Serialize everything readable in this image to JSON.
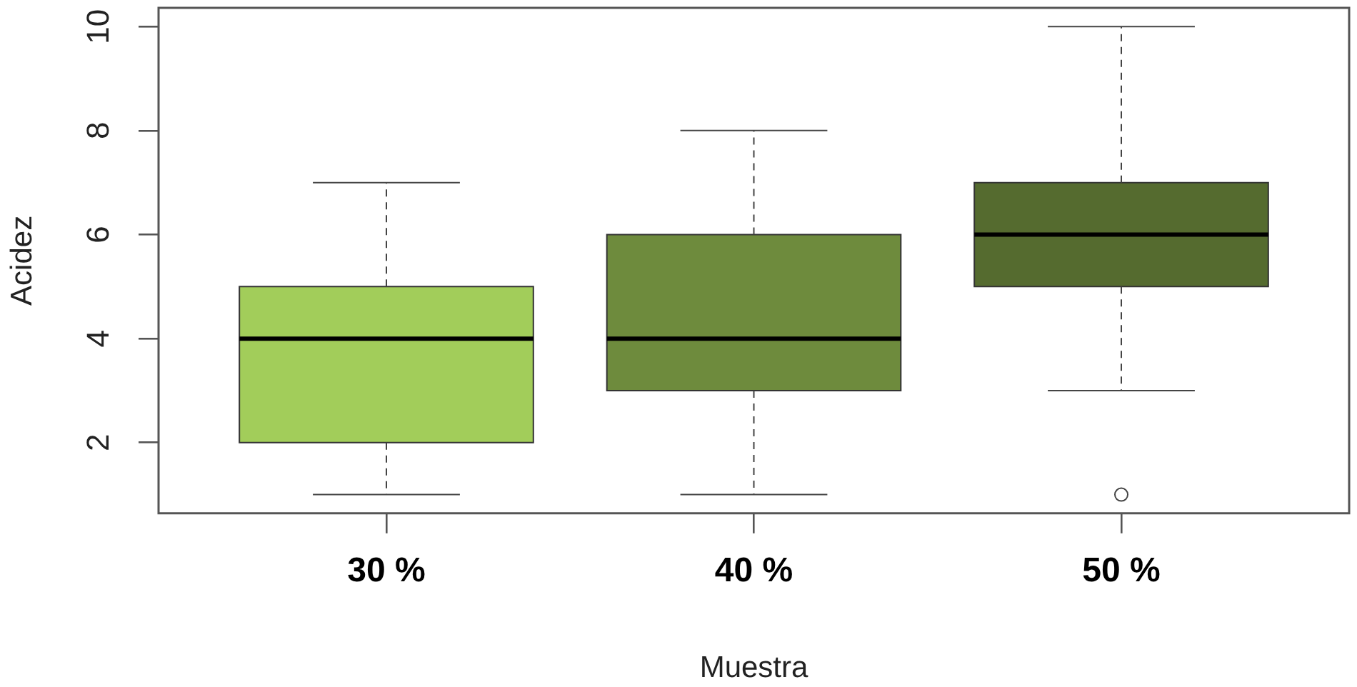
{
  "chart_data": {
    "type": "box",
    "categories": [
      "30 %",
      "40 %",
      "50 %"
    ],
    "boxes": [
      {
        "low": 1,
        "q1": 2,
        "median": 4,
        "q3": 5,
        "high": 7
      },
      {
        "low": 1,
        "q1": 3,
        "median": 4,
        "q3": 6,
        "high": 8
      },
      {
        "low": 3,
        "q1": 5,
        "median": 6,
        "q3": 7,
        "high": 10,
        "outliers": [
          1
        ]
      }
    ],
    "colors": [
      "#a2cd5a",
      "#6e8b3d",
      "#556b2f"
    ],
    "xlabel": "Muestra",
    "ylabel": "Acidez",
    "ylim": [
      0.64,
      10.36
    ],
    "yticks": [
      2,
      4,
      6,
      8,
      10
    ]
  }
}
